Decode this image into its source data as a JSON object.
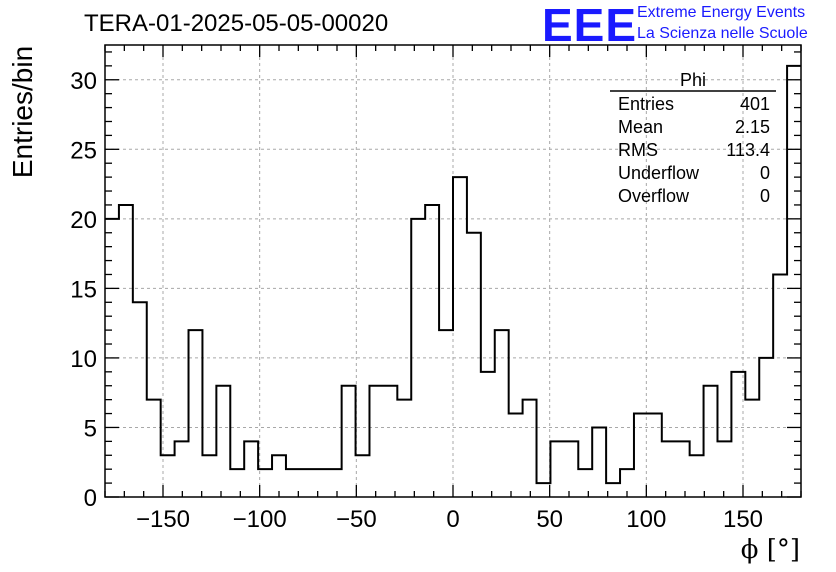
{
  "title": "TERA-01-2025-05-05-00020",
  "logo": {
    "mark": "EEE",
    "line1": "Extreme Energy Events",
    "line2": "La Scienza nelle Scuole",
    "color": "#1a1aff"
  },
  "stats": {
    "name": "Phi",
    "rows": [
      {
        "label": "Entries",
        "value": "401"
      },
      {
        "label": "Mean",
        "value": "2.15"
      },
      {
        "label": "RMS",
        "value": "113.4"
      },
      {
        "label": "Underflow",
        "value": "0"
      },
      {
        "label": "Overflow",
        "value": "0"
      }
    ]
  },
  "chart_data": {
    "type": "histogram",
    "title": "TERA-01-2025-05-05-00020",
    "xlabel": "ϕ [°]",
    "ylabel": "Entries/bin",
    "xlim": [
      -180,
      180
    ],
    "ylim": [
      0,
      32.5
    ],
    "xticks": [
      -150,
      -100,
      -50,
      0,
      50,
      100,
      150
    ],
    "xtick_labels": [
      "−150",
      "−100",
      "−50",
      "0",
      "50",
      "100",
      "150"
    ],
    "yticks": [
      0,
      5,
      10,
      15,
      20,
      25,
      30
    ],
    "grid": true,
    "bin_width": 7.2,
    "bin_edges_start": -180,
    "values": [
      20,
      21,
      14,
      7,
      3,
      4,
      12,
      3,
      8,
      2,
      4,
      2,
      3,
      2,
      2,
      2,
      2,
      8,
      3,
      8,
      8,
      7,
      20,
      21,
      12,
      23,
      19,
      9,
      12,
      6,
      7,
      1,
      4,
      4,
      2,
      5,
      1,
      2,
      6,
      6,
      4,
      4,
      3,
      8,
      4,
      9,
      7,
      10,
      16,
      31
    ],
    "line_color": "#000000"
  }
}
